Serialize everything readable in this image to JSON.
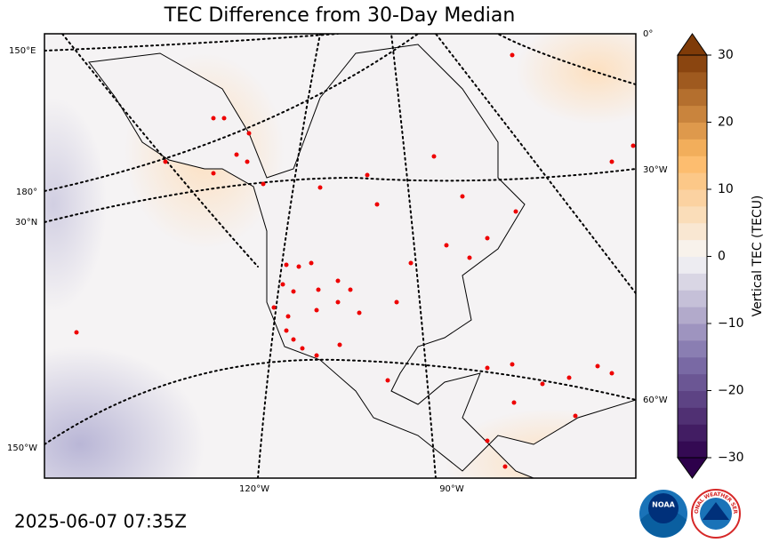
{
  "title": "TEC Difference from 30-Day Median",
  "map": {
    "labels": [
      "150°E",
      "180°",
      "30°N",
      "150°W",
      "120°W",
      "90°W",
      "0°",
      "30°W",
      "60°W"
    ]
  },
  "colorbar": {
    "label": "Vertical TEC (TECU)",
    "lim": [
      -30,
      30
    ],
    "ticks": [
      {
        "value": -30,
        "label": "−30"
      },
      {
        "value": -20,
        "label": "−20"
      },
      {
        "value": -10,
        "label": "−10"
      },
      0,
      10,
      20,
      30
    ]
  },
  "timestamp": "2025-06-07 07:35Z",
  "logos": {
    "noaa": "NOAA",
    "nws": "NATIONAL WEATHER SERVICE"
  }
}
